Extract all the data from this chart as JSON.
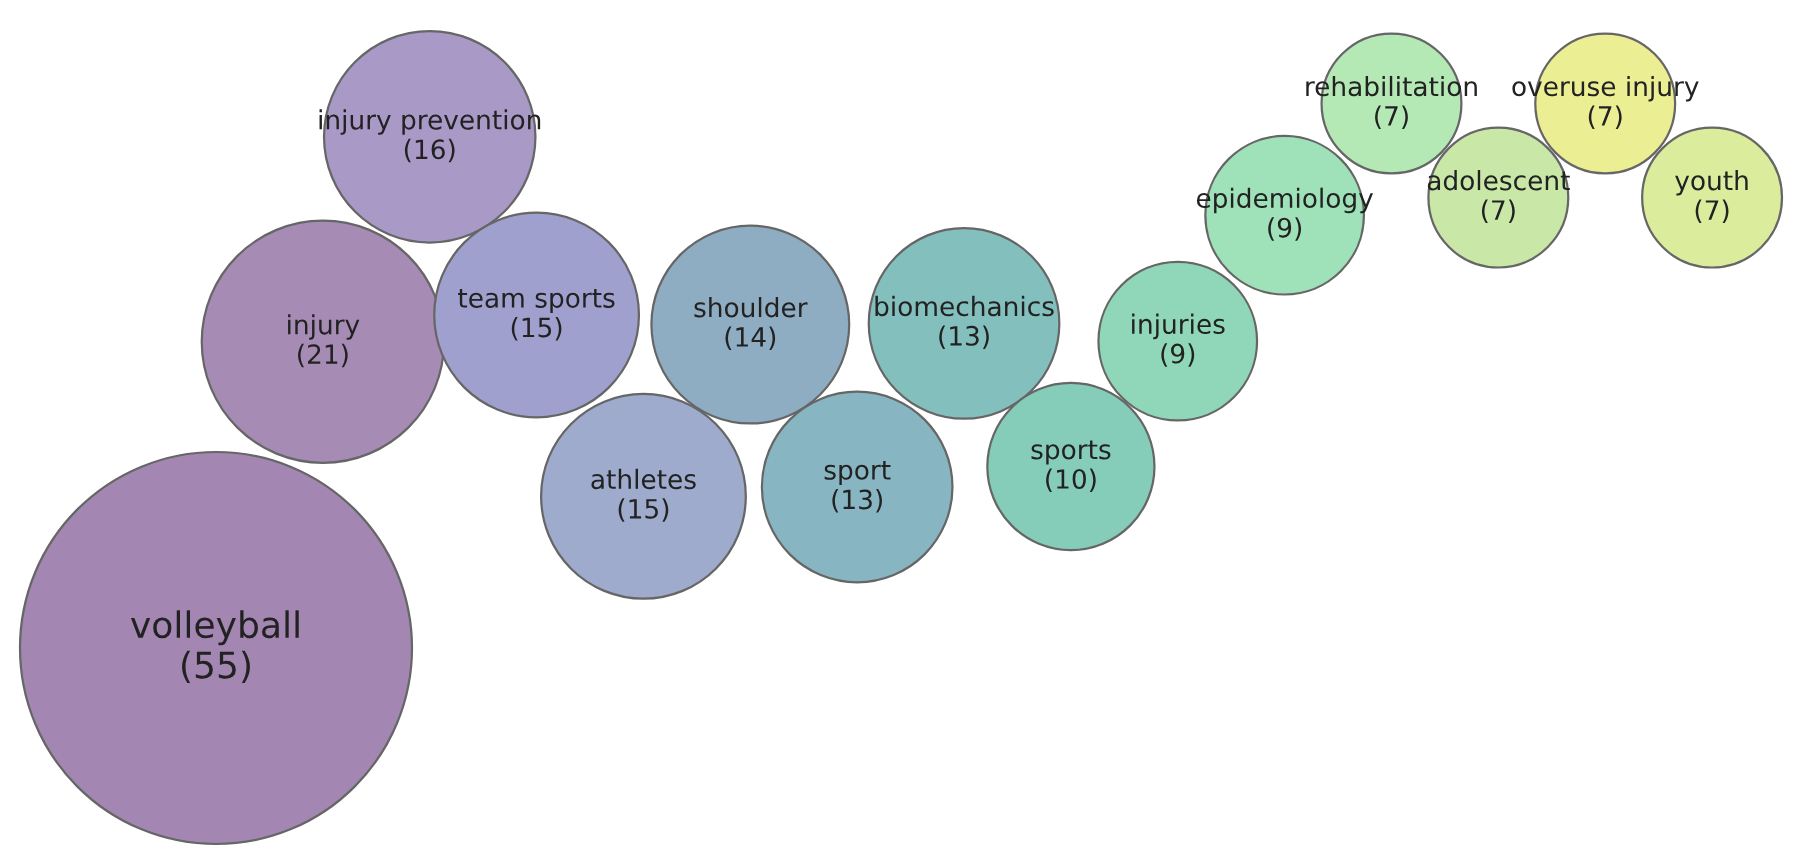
{
  "chart_data": {
    "type": "other",
    "categories": [
      "volleyball",
      "injury",
      "injury prevention",
      "team sports",
      "athletes",
      "shoulder",
      "sport",
      "biomechanics",
      "sports",
      "injuries",
      "epidemiology",
      "rehabilitation",
      "adolescent",
      "overuse injury",
      "youth"
    ],
    "values": [
      55,
      21,
      16,
      15,
      15,
      14,
      13,
      13,
      10,
      9,
      9,
      7,
      7,
      7,
      7
    ],
    "value_labels": [
      "(55)",
      "(21)",
      "(16)",
      "(15)",
      "(15)",
      "(14)",
      "(13)",
      "(13)",
      "(10)",
      "(9)",
      "(9)",
      "(7)",
      "(7)",
      "(7)",
      "(7)"
    ],
    "colors": [
      "#a387b2",
      "#a68bb5",
      "#a899c6",
      "#a0a0cf",
      "#9fabcc",
      "#8fadc2",
      "#87b6c2",
      "#83bfbd",
      "#85cdb9",
      "#8fd7b8",
      "#9fe2b9",
      "#b4e9b6",
      "#c9e8a8",
      "#ebee92",
      "#dbec9c"
    ]
  }
}
